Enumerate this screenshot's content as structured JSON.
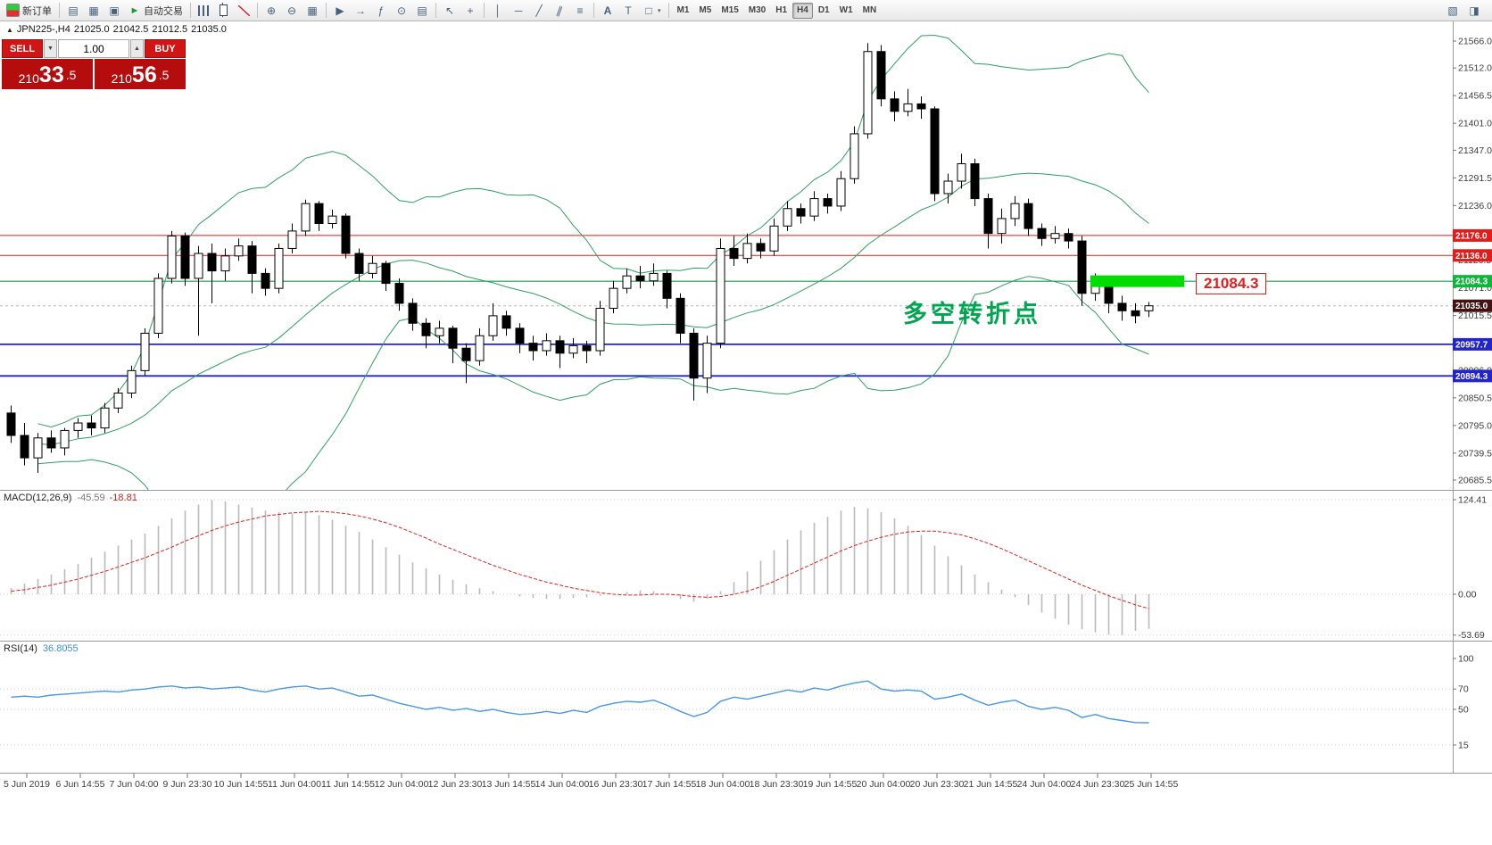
{
  "toolbar": {
    "new_order_label": "新订单",
    "auto_trading_label": "自动交易",
    "timeframes": [
      "M1",
      "M5",
      "M15",
      "M30",
      "H1",
      "H4",
      "D1",
      "W1",
      "MN"
    ],
    "active_timeframe": "H4"
  },
  "quote_bar": {
    "symbol": "JPN225-,H4",
    "open": "21025.0",
    "high": "21042.5",
    "low": "21012.5",
    "close": "21035.0"
  },
  "trade_panel": {
    "sell_label": "SELL",
    "buy_label": "BUY",
    "volume": "1.00",
    "sell_price": {
      "pre": "210",
      "big": "33",
      "frac": ".5"
    },
    "buy_price": {
      "pre": "210",
      "big": "56",
      "frac": ".5"
    }
  },
  "annotations": {
    "turning_point_text": "多空转折点",
    "note_color": "#00a550",
    "highlight_label": "21084.3",
    "highlight_color": "#00dd00",
    "highlight_price": 21084.3
  },
  "chart_data": {
    "type": "candlestick",
    "symbol": "JPN225-",
    "timeframe": "H4",
    "axis_ranges": {
      "price": [
        20662,
        21606
      ],
      "macd": [
        -62,
        135
      ],
      "rsi": [
        0,
        112
      ]
    },
    "price_axis_labels": [
      "21566.0",
      "21512.0",
      "21456.5",
      "21401.0",
      "21347.0",
      "21291.5",
      "21236.0",
      "21126.5",
      "21071.0",
      "21015.5",
      "20906.0",
      "20850.5",
      "20795.0",
      "20739.5",
      "20685.5"
    ],
    "price_badges": [
      {
        "text": "21176.0",
        "bg": "#e21b1b"
      },
      {
        "text": "21136.0",
        "bg": "#e21b1b"
      },
      {
        "text": "21084.3",
        "bg": "#10b53c"
      },
      {
        "text": "21035.0",
        "bg": "#431212"
      },
      {
        "text": "20957.7",
        "bg": "#2424cd"
      },
      {
        "text": "20894.3",
        "bg": "#2424cd"
      }
    ],
    "hlines": [
      {
        "price": 21176.0,
        "color": "#e21b1b",
        "w": 1
      },
      {
        "price": 21136.0,
        "color": "#e21b1b",
        "w": 1
      },
      {
        "price": 21084.3,
        "color": "#12a14e",
        "w": 1.2
      },
      {
        "price": 21035.0,
        "color": "#b5b5b5",
        "w": 1,
        "dash": "3 3"
      },
      {
        "price": 20957.7,
        "color": "#2424cd",
        "w": 1.8
      },
      {
        "price": 20894.3,
        "color": "#2424cd",
        "w": 1.8
      }
    ],
    "time_labels": [
      "5 Jun 2019",
      "6 Jun 14:55",
      "7 Jun 04:00",
      "9 Jun 23:30",
      "10 Jun 14:55",
      "11 Jun 04:00",
      "11 Jun 14:55",
      "12 Jun 04:00",
      "12 Jun 23:30",
      "13 Jun 14:55",
      "14 Jun 04:00",
      "16 Jun 23:30",
      "17 Jun 14:55",
      "18 Jun 04:00",
      "18 Jun 23:30",
      "19 Jun 14:55",
      "20 Jun 04:00",
      "20 Jun 23:30",
      "21 Jun 14:55",
      "24 Jun 04:00",
      "24 Jun 23:30",
      "25 Jun 14:55"
    ],
    "colors": {
      "bull": "#ffffff",
      "bear": "#000000",
      "outline": "#000000",
      "bands": "#2f9e63",
      "macd_hist": "#bbbbbb",
      "macd_signal": "#dd2222",
      "rsi_line": "#4a97e3"
    },
    "candles": [
      [
        20820,
        20835,
        20760,
        20775
      ],
      [
        20775,
        20800,
        20715,
        20730
      ],
      [
        20730,
        20780,
        20700,
        20770
      ],
      [
        20770,
        20785,
        20740,
        20750
      ],
      [
        20750,
        20790,
        20735,
        20785
      ],
      [
        20785,
        20810,
        20770,
        20800
      ],
      [
        20800,
        20815,
        20775,
        20790
      ],
      [
        20790,
        20840,
        20780,
        20830
      ],
      [
        20830,
        20870,
        20820,
        20860
      ],
      [
        20860,
        20915,
        20850,
        20905
      ],
      [
        20905,
        20990,
        20895,
        20980
      ],
      [
        20980,
        21100,
        20970,
        21090
      ],
      [
        21090,
        21185,
        21080,
        21175
      ],
      [
        21175,
        21182,
        21075,
        21090
      ],
      [
        21090,
        21155,
        20975,
        21140
      ],
      [
        21140,
        21160,
        21040,
        21105
      ],
      [
        21105,
        21150,
        21085,
        21135
      ],
      [
        21135,
        21170,
        21125,
        21155
      ],
      [
        21155,
        21165,
        21060,
        21100
      ],
      [
        21100,
        21110,
        21055,
        21070
      ],
      [
        21070,
        21160,
        21060,
        21150
      ],
      [
        21150,
        21200,
        21140,
        21185
      ],
      [
        21185,
        21248,
        21175,
        21240
      ],
      [
        21240,
        21245,
        21185,
        21200
      ],
      [
        21200,
        21228,
        21190,
        21215
      ],
      [
        21215,
        21220,
        21130,
        21140
      ],
      [
        21140,
        21150,
        21085,
        21100
      ],
      [
        21100,
        21135,
        21090,
        21120
      ],
      [
        21120,
        21125,
        21065,
        21080
      ],
      [
        21080,
        21090,
        21025,
        21040
      ],
      [
        21040,
        21050,
        20985,
        21000
      ],
      [
        21000,
        21010,
        20950,
        20975
      ],
      [
        20975,
        21005,
        20960,
        20990
      ],
      [
        20990,
        20995,
        20920,
        20950
      ],
      [
        20950,
        20960,
        20880,
        20925
      ],
      [
        20925,
        20990,
        20915,
        20975
      ],
      [
        20975,
        21040,
        20965,
        21015
      ],
      [
        21015,
        21025,
        20975,
        20990
      ],
      [
        20990,
        21000,
        20940,
        20960
      ],
      [
        20960,
        20975,
        20925,
        20945
      ],
      [
        20945,
        20980,
        20935,
        20965
      ],
      [
        20965,
        20975,
        20910,
        20940
      ],
      [
        20940,
        20970,
        20930,
        20955
      ],
      [
        20955,
        20965,
        20920,
        20945
      ],
      [
        20945,
        21045,
        20935,
        21030
      ],
      [
        21030,
        21085,
        21020,
        21070
      ],
      [
        21070,
        21110,
        21060,
        21095
      ],
      [
        21095,
        21115,
        21070,
        21085
      ],
      [
        21085,
        21120,
        21075,
        21100
      ],
      [
        21100,
        21105,
        21030,
        21050
      ],
      [
        21050,
        21060,
        20960,
        20980
      ],
      [
        20980,
        20990,
        20845,
        20890
      ],
      [
        20890,
        20975,
        20860,
        20960
      ],
      [
        20960,
        21170,
        20950,
        21150
      ],
      [
        21150,
        21175,
        21115,
        21130
      ],
      [
        21130,
        21180,
        21120,
        21160
      ],
      [
        21160,
        21170,
        21130,
        21145
      ],
      [
        21145,
        21210,
        21135,
        21195
      ],
      [
        21195,
        21245,
        21185,
        21230
      ],
      [
        21230,
        21240,
        21200,
        21215
      ],
      [
        21215,
        21265,
        21205,
        21250
      ],
      [
        21250,
        21260,
        21220,
        21235
      ],
      [
        21235,
        21305,
        21225,
        21290
      ],
      [
        21290,
        21395,
        21280,
        21380
      ],
      [
        21380,
        21562,
        21370,
        21545
      ],
      [
        21545,
        21558,
        21435,
        21450
      ],
      [
        21450,
        21465,
        21405,
        21425
      ],
      [
        21425,
        21470,
        21415,
        21440
      ],
      [
        21440,
        21455,
        21410,
        21430
      ],
      [
        21430,
        21435,
        21245,
        21260
      ],
      [
        21260,
        21300,
        21240,
        21285
      ],
      [
        21285,
        21340,
        21270,
        21320
      ],
      [
        21320,
        21330,
        21235,
        21250
      ],
      [
        21250,
        21260,
        21150,
        21180
      ],
      [
        21180,
        21230,
        21160,
        21210
      ],
      [
        21210,
        21255,
        21195,
        21240
      ],
      [
        21240,
        21250,
        21175,
        21190
      ],
      [
        21190,
        21200,
        21155,
        21170
      ],
      [
        21170,
        21195,
        21160,
        21180
      ],
      [
        21180,
        21190,
        21150,
        21165
      ],
      [
        21165,
        21175,
        21035,
        21060
      ],
      [
        21060,
        21100,
        21045,
        21085
      ],
      [
        21085,
        21095,
        21020,
        21040
      ],
      [
        21040,
        21055,
        21005,
        21025
      ],
      [
        21025,
        21040,
        21000,
        21015
      ],
      [
        21025,
        21042.5,
        21012.5,
        21035
      ]
    ],
    "macd": {
      "name": "MACD(12,26,9)",
      "value_main": "-45.59",
      "value_signal": "-18.81",
      "scale_labels": [
        "124.41",
        "0.00",
        "-53.69"
      ],
      "hist": [
        8,
        14,
        20,
        26,
        33,
        40,
        48,
        56,
        64,
        72,
        80,
        90,
        100,
        110,
        118,
        124,
        122,
        118,
        114,
        110,
        108,
        106,
        108,
        104,
        98,
        90,
        82,
        72,
        62,
        52,
        42,
        34,
        26,
        19,
        13,
        8,
        4,
        0,
        -3,
        -5,
        -6,
        -6,
        -5,
        -4,
        -2,
        0,
        3,
        5,
        4,
        0,
        -6,
        -10,
        -6,
        4,
        16,
        30,
        44,
        58,
        72,
        84,
        94,
        102,
        110,
        115,
        113,
        108,
        100,
        90,
        78,
        64,
        50,
        38,
        26,
        16,
        6,
        -4,
        -14,
        -24,
        -32,
        -40,
        -46,
        -50,
        -53,
        -53.69,
        -48,
        -45.59
      ],
      "signal": [
        4,
        6,
        9,
        12,
        16,
        20,
        25,
        30,
        36,
        42,
        48,
        55,
        62,
        70,
        77,
        84,
        90,
        95,
        99,
        103,
        105,
        107,
        108,
        109,
        108,
        106,
        103,
        99,
        94,
        88,
        81,
        74,
        66,
        59,
        52,
        45,
        38,
        32,
        26,
        21,
        16,
        12,
        8,
        5,
        2,
        0,
        -1,
        -1,
        0,
        0,
        -1,
        -3,
        -4,
        -3,
        0,
        4,
        10,
        17,
        25,
        33,
        41,
        49,
        57,
        64,
        70,
        75,
        79,
        82,
        83,
        83,
        81,
        78,
        73,
        67,
        60,
        52,
        44,
        36,
        28,
        20,
        12,
        5,
        -2,
        -8,
        -14,
        -18.81
      ]
    },
    "rsi": {
      "name": "RSI(14)",
      "value": "36.8055",
      "scale_labels": [
        "100",
        "70",
        "50",
        "15"
      ],
      "values": [
        62,
        63,
        62,
        64,
        65,
        66,
        67,
        68,
        67,
        69,
        70,
        72,
        73,
        71,
        72,
        70,
        71,
        72,
        69,
        67,
        70,
        72,
        73,
        70,
        71,
        67,
        63,
        64,
        60,
        56,
        53,
        50,
        52,
        49,
        51,
        48,
        50,
        47,
        45,
        46,
        48,
        46,
        49,
        47,
        53,
        56,
        58,
        57,
        59,
        54,
        48,
        43,
        47,
        58,
        62,
        60,
        63,
        66,
        69,
        67,
        71,
        69,
        73,
        76,
        78,
        70,
        68,
        69,
        68,
        60,
        62,
        65,
        59,
        54,
        57,
        59,
        53,
        50,
        52,
        49,
        42,
        45,
        41,
        39,
        37,
        36.8
      ]
    }
  }
}
